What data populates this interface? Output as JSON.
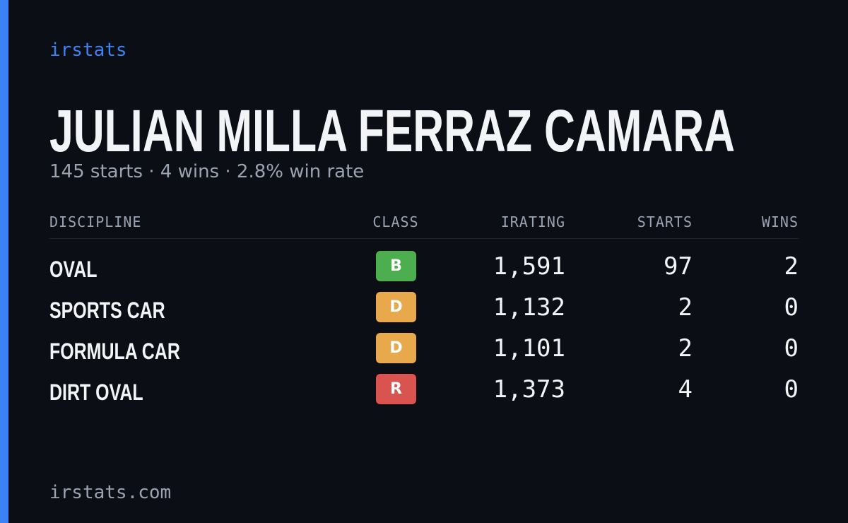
{
  "brand": "irstats",
  "header": {
    "title": "JULIAN MILLA FERRAZ CAMARA",
    "subtitle": "145 starts · 4 wins · 2.8% win rate"
  },
  "table": {
    "columns": [
      "DISCIPLINE",
      "CLASS",
      "IRATING",
      "STARTS",
      "WINS"
    ],
    "rows": [
      {
        "discipline": "OVAL",
        "class": "B",
        "class_color": "#4cae4f",
        "irating": "1,591",
        "starts": "97",
        "wins": "2"
      },
      {
        "discipline": "SPORTS CAR",
        "class": "D",
        "class_color": "#e8a84c",
        "irating": "1,132",
        "starts": "2",
        "wins": "0"
      },
      {
        "discipline": "FORMULA CAR",
        "class": "D",
        "class_color": "#e8a84c",
        "irating": "1,101",
        "starts": "2",
        "wins": "0"
      },
      {
        "discipline": "DIRT OVAL",
        "class": "R",
        "class_color": "#d9534f",
        "irating": "1,373",
        "starts": "4",
        "wins": "0"
      }
    ]
  },
  "footer": "irstats.com"
}
